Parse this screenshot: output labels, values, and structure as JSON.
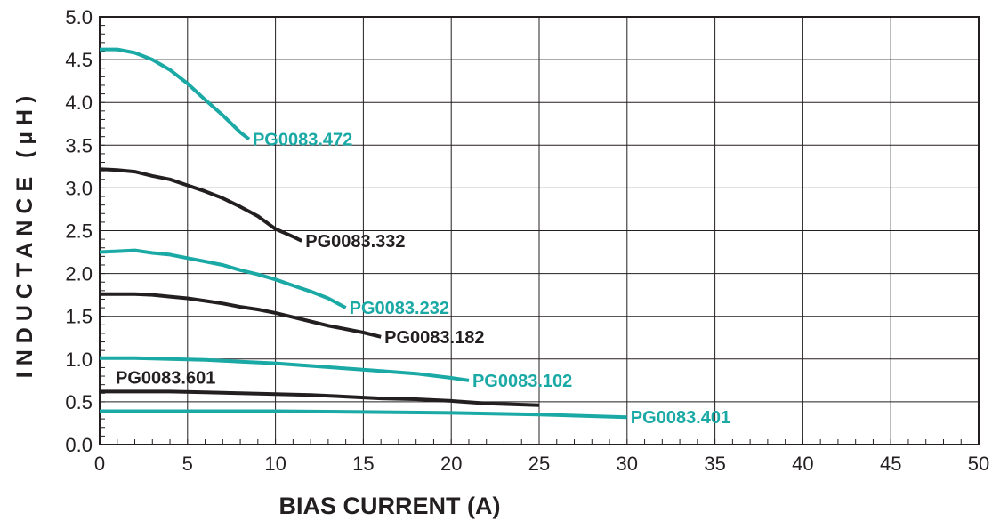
{
  "chart_data": {
    "type": "line",
    "xlabel": "BIAS CURRENT (A)",
    "ylabel": "INDUCTANCE (µH)",
    "xlim": [
      0,
      50
    ],
    "ylim": [
      0,
      5.0
    ],
    "x_ticks": [
      "0",
      "5",
      "10",
      "15",
      "20",
      "25",
      "30",
      "35",
      "40",
      "45",
      "50"
    ],
    "y_ticks": [
      "0.0",
      "0.5",
      "1.0",
      "1.5",
      "2.0",
      "2.5",
      "3.0",
      "3.5",
      "4.0",
      "4.5",
      "5.0"
    ],
    "grid": true,
    "colors": {
      "teal": "#1aa9a5",
      "black": "#231f20"
    },
    "series": [
      {
        "name": "PG0083.472",
        "color": "#1aa9a5",
        "label_anchor": "end",
        "x": [
          0,
          1,
          2,
          3,
          4,
          5,
          6,
          7,
          8,
          8.5
        ],
        "y": [
          4.62,
          4.62,
          4.58,
          4.5,
          4.38,
          4.22,
          4.03,
          3.85,
          3.65,
          3.57
        ]
      },
      {
        "name": "PG0083.332",
        "color": "#231f20",
        "label_anchor": "end",
        "x": [
          0,
          1,
          2,
          3,
          4,
          5,
          6,
          7,
          8,
          9,
          10,
          11,
          11.5
        ],
        "y": [
          3.22,
          3.21,
          3.19,
          3.14,
          3.1,
          3.03,
          2.96,
          2.88,
          2.78,
          2.67,
          2.52,
          2.43,
          2.38
        ]
      },
      {
        "name": "PG0083.232",
        "color": "#1aa9a5",
        "label_anchor": "end",
        "x": [
          0,
          1,
          2,
          3,
          4,
          5,
          6,
          7,
          8,
          9,
          10,
          11,
          12,
          13,
          14
        ],
        "y": [
          2.25,
          2.26,
          2.27,
          2.24,
          2.22,
          2.18,
          2.14,
          2.1,
          2.04,
          1.99,
          1.93,
          1.86,
          1.79,
          1.71,
          1.6
        ]
      },
      {
        "name": "PG0083.182",
        "color": "#231f20",
        "label_anchor": "end",
        "x": [
          0,
          1,
          2,
          3,
          4,
          5,
          6,
          7,
          8,
          9,
          10,
          11,
          12,
          13,
          14,
          15,
          16
        ],
        "y": [
          1.76,
          1.76,
          1.76,
          1.75,
          1.73,
          1.71,
          1.68,
          1.65,
          1.61,
          1.58,
          1.54,
          1.49,
          1.44,
          1.39,
          1.35,
          1.31,
          1.26
        ]
      },
      {
        "name": "PG0083.102",
        "color": "#1aa9a5",
        "label_anchor": "end",
        "x": [
          0,
          2,
          4,
          6,
          8,
          10,
          12,
          14,
          16,
          18,
          20,
          21
        ],
        "y": [
          1.01,
          1.01,
          1.0,
          0.99,
          0.97,
          0.95,
          0.92,
          0.89,
          0.86,
          0.83,
          0.78,
          0.75
        ]
      },
      {
        "name": "PG0083.601",
        "color": "#231f20",
        "label_anchor": "start",
        "x": [
          0,
          2,
          4,
          6,
          8,
          10,
          12,
          14,
          16,
          18,
          20,
          22,
          25
        ],
        "y": [
          0.62,
          0.62,
          0.62,
          0.61,
          0.6,
          0.59,
          0.58,
          0.56,
          0.54,
          0.53,
          0.51,
          0.48,
          0.46
        ]
      },
      {
        "name": "PG0083.401",
        "color": "#1aa9a5",
        "label_anchor": "end",
        "x": [
          0,
          5,
          10,
          15,
          20,
          25,
          30
        ],
        "y": [
          0.39,
          0.39,
          0.39,
          0.38,
          0.37,
          0.35,
          0.32
        ]
      }
    ]
  }
}
